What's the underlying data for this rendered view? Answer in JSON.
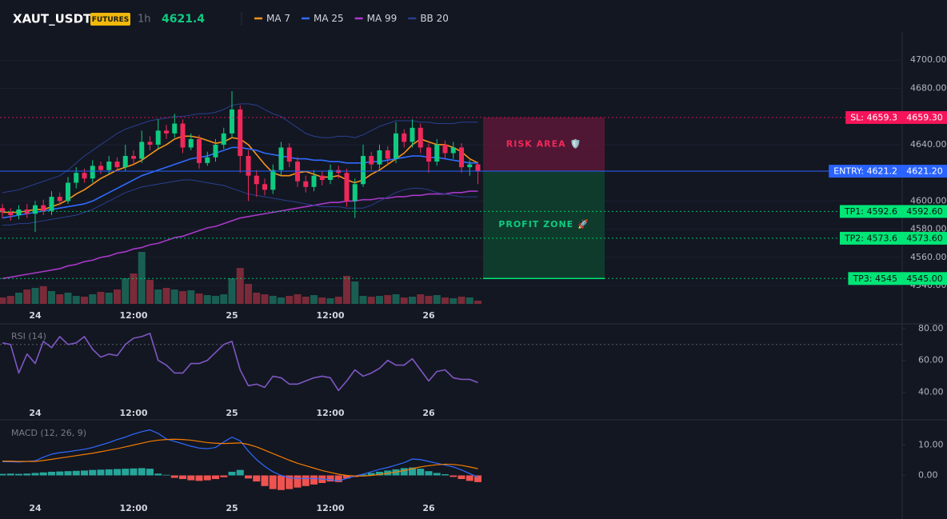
{
  "header": {
    "symbol": "XAUT_USDT",
    "badge": "FUTURES",
    "interval": "1h",
    "price": "4621.4"
  },
  "chart_data": [
    {
      "type": "candlestick",
      "categories": [
        null,
        null,
        null,
        null,
        "24",
        null,
        null,
        null,
        null,
        null,
        null,
        null,
        null,
        null,
        null,
        null,
        "12:00",
        null,
        null,
        null,
        null,
        null,
        null,
        null,
        null,
        null,
        null,
        null,
        "25",
        null,
        null,
        null,
        null,
        null,
        null,
        null,
        null,
        null,
        null,
        null,
        "12:00",
        null,
        null,
        null,
        null,
        null,
        null,
        null,
        null,
        null,
        null,
        null,
        "26",
        null,
        null,
        null,
        null,
        null,
        null
      ],
      "candles": {
        "open": [
          4595,
          4592,
          4590,
          4594,
          4591,
          4597,
          4593,
          4603,
          4600,
          4613,
          4620,
          4616,
          4625,
          4622,
          4628,
          4624,
          4632,
          4630,
          4642,
          4640,
          4650,
          4648,
          4655,
          4638,
          4644,
          4627,
          4631,
          4640,
          4648,
          4665,
          4632,
          4618,
          4612,
          4608,
          4622,
          4638,
          4628,
          4614,
          4610,
          4618,
          4615,
          4622,
          4620,
          4600,
          4612,
          4632,
          4626,
          4636,
          4630,
          4648,
          4642,
          4652,
          4638,
          4628,
          4640,
          4634,
          4638,
          4624,
          4626
        ],
        "high": [
          4598,
          4595,
          4597,
          4598,
          4600,
          4601,
          4607,
          4606,
          4617,
          4624,
          4623,
          4629,
          4628,
          4632,
          4631,
          4640,
          4636,
          4650,
          4646,
          4658,
          4654,
          4662,
          4658,
          4648,
          4647,
          4635,
          4644,
          4652,
          4678,
          4668,
          4636,
          4622,
          4616,
          4626,
          4642,
          4641,
          4631,
          4618,
          4622,
          4621,
          4626,
          4625,
          4623,
          4616,
          4640,
          4635,
          4640,
          4639,
          4656,
          4651,
          4658,
          4655,
          4641,
          4644,
          4643,
          4642,
          4641,
          4629,
          4628
        ],
        "low": [
          4588,
          4586,
          4587,
          4588,
          4578,
          4590,
          4590,
          4597,
          4598,
          4609,
          4613,
          4613,
          4619,
          4619,
          4621,
          4621,
          4626,
          4627,
          4636,
          4637,
          4644,
          4645,
          4634,
          4636,
          4623,
          4625,
          4628,
          4637,
          4645,
          4620,
          4600,
          4603,
          4604,
          4605,
          4618,
          4624,
          4610,
          4606,
          4607,
          4611,
          4612,
          4616,
          4596,
          4588,
          4610,
          4622,
          4623,
          4626,
          4627,
          4638,
          4638,
          4634,
          4620,
          4625,
          4630,
          4630,
          4620,
          4618,
          4612
        ],
        "close": [
          4592,
          4590,
          4594,
          4591,
          4597,
          4593,
          4603,
          4600,
          4613,
          4620,
          4616,
          4625,
          4622,
          4628,
          4624,
          4632,
          4630,
          4642,
          4640,
          4650,
          4648,
          4655,
          4638,
          4644,
          4627,
          4631,
          4640,
          4648,
          4665,
          4632,
          4618,
          4612,
          4608,
          4622,
          4638,
          4628,
          4614,
          4610,
          4618,
          4615,
          4622,
          4620,
          4600,
          4612,
          4632,
          4626,
          4636,
          4630,
          4648,
          4642,
          4652,
          4638,
          4628,
          4640,
          4634,
          4638,
          4624,
          4626,
          4621.4
        ]
      },
      "up_color": "#0ecb81",
      "down_color": "#f0285a",
      "volume": [
        8,
        10,
        14,
        18,
        20,
        22,
        16,
        12,
        14,
        10,
        9,
        12,
        15,
        14,
        18,
        32,
        38,
        65,
        30,
        18,
        20,
        18,
        16,
        17,
        13,
        11,
        10,
        12,
        32,
        45,
        25,
        14,
        12,
        10,
        8,
        10,
        12,
        9,
        11,
        8,
        7,
        9,
        35,
        28,
        10,
        9,
        10,
        11,
        12,
        8,
        9,
        12,
        10,
        11,
        8,
        7,
        9,
        8,
        4
      ],
      "volume_up_color": "#1a5e52",
      "volume_down_color": "#7a2a38",
      "series": [
        {
          "name": "MA 7",
          "color": "#f7931a",
          "values": [
            4592,
            4592,
            4592,
            4593,
            4594,
            4594,
            4596,
            4598,
            4601,
            4605,
            4608,
            4612,
            4616,
            4619,
            4622,
            4624,
            4626,
            4629,
            4633,
            4637,
            4640,
            4644,
            4646,
            4646,
            4645,
            4643,
            4641,
            4642,
            4645,
            4644,
            4640,
            4633,
            4626,
            4620,
            4618,
            4618,
            4620,
            4621,
            4619,
            4617,
            4617,
            4618,
            4615,
            4613,
            4615,
            4619,
            4622,
            4626,
            4630,
            4634,
            4640,
            4644,
            4642,
            4640,
            4640,
            4638,
            4635,
            4630,
            4627
          ]
        },
        {
          "name": "MA 25",
          "color": "#2f6bff",
          "values": [
            4588,
            4589,
            4590,
            4591,
            4592,
            4593,
            4594,
            4595,
            4596,
            4597,
            4598,
            4600,
            4603,
            4606,
            4609,
            4612,
            4615,
            4618,
            4620,
            4622,
            4624,
            4626,
            4628,
            4630,
            4631,
            4632,
            4634,
            4636,
            4638,
            4638,
            4637,
            4636,
            4634,
            4633,
            4632,
            4631,
            4630,
            4630,
            4629,
            4629,
            4628,
            4628,
            4627,
            4627,
            4627,
            4628,
            4628,
            4629,
            4630,
            4631,
            4632,
            4632,
            4631,
            4631,
            4630,
            4629,
            4628,
            4627,
            4627
          ]
        },
        {
          "name": "MA 99",
          "color": "#a838c8",
          "values": [
            4545,
            4546,
            4547,
            4548,
            4549,
            4550,
            4551,
            4552,
            4554,
            4555,
            4557,
            4558,
            4560,
            4561,
            4563,
            4564,
            4566,
            4567,
            4569,
            4570,
            4572,
            4574,
            4575,
            4577,
            4579,
            4581,
            4582,
            4584,
            4586,
            4588,
            4589,
            4590,
            4591,
            4592,
            4593,
            4594,
            4595,
            4596,
            4597,
            4598,
            4599,
            4599,
            4600,
            4600,
            4601,
            4601,
            4602,
            4602,
            4603,
            4603,
            4604,
            4604,
            4605,
            4605,
            4605,
            4606,
            4606,
            4607,
            4607
          ]
        },
        {
          "name": "BB 20",
          "color": "#2a3f8f",
          "upper": [
            4606,
            4607,
            4608,
            4610,
            4612,
            4614,
            4616,
            4618,
            4622,
            4627,
            4632,
            4636,
            4640,
            4644,
            4648,
            4651,
            4653,
            4655,
            4657,
            4658,
            4659,
            4660,
            4660,
            4661,
            4662,
            4662,
            4663,
            4665,
            4668,
            4669,
            4669,
            4668,
            4665,
            4662,
            4660,
            4656,
            4652,
            4648,
            4646,
            4645,
            4645,
            4646,
            4646,
            4645,
            4647,
            4650,
            4653,
            4655,
            4657,
            4657,
            4657,
            4656,
            4656,
            4655,
            4655,
            4655,
            4656,
            4656,
            4656
          ],
          "lower": [
            4583,
            4583,
            4584,
            4584,
            4585,
            4586,
            4587,
            4588,
            4589,
            4590,
            4592,
            4594,
            4597,
            4600,
            4603,
            4606,
            4608,
            4610,
            4611,
            4612,
            4613,
            4614,
            4615,
            4615,
            4614,
            4613,
            4612,
            4611,
            4609,
            4607,
            4605,
            4604,
            4603,
            4602,
            4601,
            4600,
            4599,
            4598,
            4597,
            4596,
            4596,
            4596,
            4595,
            4595,
            4595,
            4597,
            4600,
            4603,
            4606,
            4608,
            4609,
            4609,
            4608,
            4606,
            4605,
            4604,
            4603,
            4603,
            4603
          ]
        }
      ],
      "levels": [
        {
          "label": "SL: 4659.3",
          "value": {
            "value": 4659.3,
            "label": "4659.30"
          },
          "color": "#f5145a",
          "text_color": "#ffffff",
          "style": "dotted"
        },
        {
          "label": "ENTRY: 4621.2",
          "value": {
            "value": 4621.2,
            "label": "4621.20"
          },
          "color": "#2962ff",
          "text_color": "#ffffff",
          "style": "solid"
        },
        {
          "label": "TP1: 4592.6",
          "value": {
            "value": 4592.6,
            "label": "4592.60"
          },
          "color": "#00e676",
          "text_color": "#0b0e14",
          "style": "dotted"
        },
        {
          "label": "TP2: 4573.6",
          "value": {
            "value": 4573.6,
            "label": "4573.60"
          },
          "color": "#00e676",
          "text_color": "#0b0e14",
          "style": "dotted"
        },
        {
          "label": "TP3: 4545",
          "value": {
            "value": 4545,
            "label": "4545.00"
          },
          "color": "#00e676",
          "text_color": "#0b0e14",
          "style": "dotted"
        }
      ],
      "zones": [
        "RISK AREA 🛡️",
        "PROFIT ZONE 🚀"
      ],
      "ylim": [
        4527,
        4720
      ],
      "yticks": [
        {
          "value": 4700,
          "label": "4700.00"
        },
        {
          "value": 4680,
          "label": "4680.00"
        },
        {
          "value": 4640,
          "label": "4640.00"
        },
        {
          "value": 4600,
          "label": "4600.00"
        },
        {
          "value": 4580,
          "label": "4580.00"
        },
        {
          "value": 4560,
          "label": "4560.00"
        },
        {
          "value": 4540,
          "label": "4540.00"
        }
      ],
      "grid": true
    },
    {
      "type": "line",
      "title": "RSI (14)",
      "color": "#7e57c2",
      "categories": [
        null,
        null,
        null,
        null,
        "24",
        null,
        null,
        null,
        null,
        null,
        null,
        null,
        null,
        null,
        null,
        null,
        "12:00",
        null,
        null,
        null,
        null,
        null,
        null,
        null,
        null,
        null,
        null,
        null,
        "25",
        null,
        null,
        null,
        null,
        null,
        null,
        null,
        null,
        null,
        null,
        null,
        "12:00",
        null,
        null,
        null,
        null,
        null,
        null,
        null,
        null,
        null,
        null,
        null,
        "26",
        null,
        null,
        null,
        null,
        null,
        null
      ],
      "values": [
        71,
        70,
        52,
        64,
        58,
        72,
        68,
        75,
        70,
        71,
        75,
        67,
        62,
        64,
        63,
        70,
        74,
        75,
        77,
        60,
        57,
        52,
        52,
        58,
        58,
        60,
        65,
        70,
        72,
        54,
        44,
        45,
        43,
        50,
        49,
        45,
        45,
        47,
        49,
        50,
        49,
        41,
        47,
        54,
        50,
        52,
        55,
        60,
        57,
        57,
        61,
        54,
        47,
        53,
        54,
        49,
        48,
        48,
        46
      ],
      "levels": [
        70
      ],
      "ylim": [
        25,
        81.5
      ],
      "yticks": [
        {
          "value": 80,
          "label": "80.00"
        },
        {
          "value": 60,
          "label": "60.00"
        },
        {
          "value": 40,
          "label": "40.00"
        }
      ]
    },
    {
      "type": "macd",
      "title": "MACD (12, 26, 9)",
      "categories": [
        null,
        null,
        null,
        null,
        "24",
        null,
        null,
        null,
        null,
        null,
        null,
        null,
        null,
        null,
        null,
        null,
        "12:00",
        null,
        null,
        null,
        null,
        null,
        null,
        null,
        null,
        null,
        null,
        null,
        "25",
        null,
        null,
        null,
        null,
        null,
        null,
        null,
        null,
        null,
        null,
        null,
        "12:00",
        null,
        null,
        null,
        null,
        null,
        null,
        null,
        null,
        null,
        null,
        null,
        "26",
        null,
        null,
        null,
        null,
        null,
        null
      ],
      "macd": {
        "color": "#2f6bff",
        "values": [
          4.5,
          4.5,
          4.4,
          4.6,
          4.8,
          6.0,
          7.0,
          7.5,
          7.8,
          8.2,
          8.6,
          9.2,
          10.0,
          10.8,
          11.8,
          12.6,
          13.6,
          14.4,
          15.0,
          13.8,
          12.0,
          11.2,
          10.4,
          9.6,
          9.0,
          8.8,
          9.2,
          11.0,
          12.6,
          11.4,
          8.0,
          5.2,
          3.0,
          1.2,
          0.0,
          -0.8,
          -1.0,
          -1.0,
          -1.0,
          -1.2,
          -1.4,
          -1.8,
          -1.0,
          -0.2,
          0.4,
          1.2,
          2.0,
          2.6,
          3.4,
          4.2,
          5.4,
          5.2,
          4.6,
          4.0,
          3.4,
          2.8,
          1.8,
          0.6,
          -0.6
        ]
      },
      "signal": {
        "color": "#f57c00",
        "values": [
          4.7,
          4.7,
          4.6,
          4.6,
          4.6,
          4.9,
          5.3,
          5.7,
          6.1,
          6.5,
          6.9,
          7.3,
          7.8,
          8.3,
          8.8,
          9.4,
          10.0,
          10.6,
          11.2,
          11.6,
          11.8,
          11.9,
          11.8,
          11.6,
          11.2,
          10.8,
          10.6,
          10.5,
          10.6,
          10.7,
          10.2,
          9.4,
          8.3,
          7.2,
          6.1,
          5.0,
          4.0,
          3.2,
          2.4,
          1.6,
          1.0,
          0.4,
          0.0,
          -0.2,
          -0.2,
          0.0,
          0.3,
          0.7,
          1.1,
          1.6,
          2.2,
          2.8,
          3.2,
          3.5,
          3.7,
          3.6,
          3.3,
          2.8,
          2.2
        ]
      },
      "histogram": {
        "up_color": "#26a69a",
        "down_color": "#ef5350",
        "values": [
          0.5,
          0.6,
          0.5,
          0.6,
          0.8,
          1.0,
          1.2,
          1.3,
          1.4,
          1.5,
          1.6,
          1.8,
          1.9,
          2.0,
          2.1,
          2.2,
          2.3,
          2.4,
          2.2,
          0.6,
          0.2,
          -0.8,
          -1.2,
          -1.6,
          -1.8,
          -1.6,
          -1.2,
          -0.6,
          1.2,
          1.8,
          -1.0,
          -2.0,
          -3.5,
          -4.5,
          -4.8,
          -4.5,
          -4.0,
          -3.5,
          -3.0,
          -2.5,
          -2.0,
          -2.2,
          -1.0,
          -0.5,
          0.3,
          0.8,
          1.2,
          1.6,
          2.0,
          2.4,
          2.6,
          2.2,
          1.4,
          0.8,
          0.4,
          -0.5,
          -1.2,
          -1.8,
          -2.2
        ]
      },
      "ylim": [
        -8,
        17.5
      ],
      "yticks": [
        {
          "value": 10,
          "label": "10.00"
        },
        {
          "value": 0,
          "label": "0.00"
        }
      ]
    }
  ]
}
